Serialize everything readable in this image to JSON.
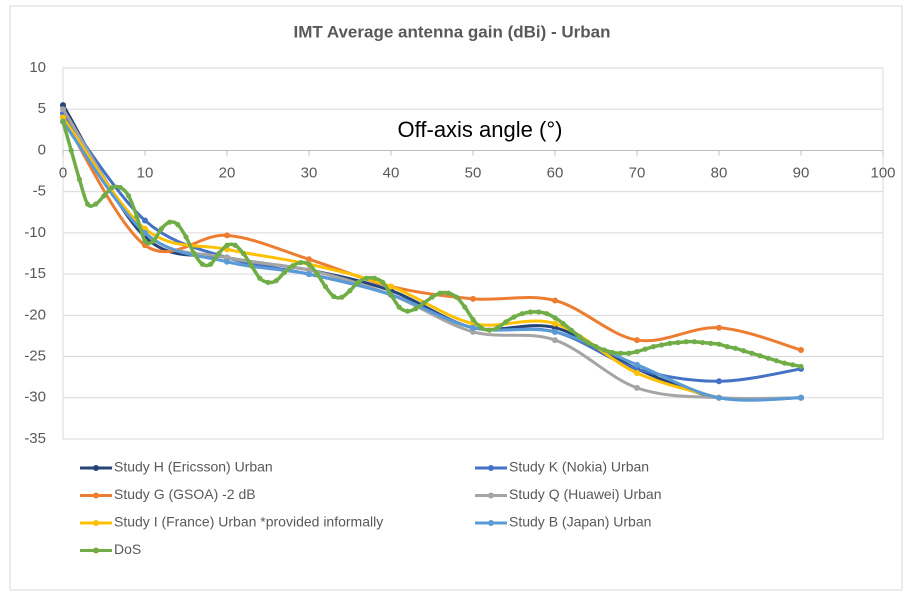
{
  "chart_data": {
    "type": "line",
    "title": "IMT Average antenna gain (dBi) - Urban",
    "x_label": "Off-axis angle (°)",
    "x": [
      0,
      10,
      20,
      30,
      40,
      50,
      60,
      70,
      80,
      90
    ],
    "xlim": [
      0,
      100
    ],
    "xticks": [
      0,
      10,
      20,
      30,
      40,
      50,
      60,
      70,
      80,
      90,
      100
    ],
    "ylim": [
      -35,
      10
    ],
    "yticks": [
      10,
      5,
      0,
      -5,
      -10,
      -15,
      -20,
      -25,
      -30,
      -35
    ],
    "grid": true,
    "legend": "bottom",
    "smooth": true,
    "series": [
      {
        "name": "Study H (Ericsson) Urban",
        "color": "#264478",
        "values": [
          5.5,
          -10.5,
          -13,
          -14.5,
          -17,
          -21.5,
          -21.5,
          -26.5,
          -30,
          -30
        ]
      },
      {
        "name": "Study K (Nokia) Urban",
        "color": "#4472c4",
        "values": [
          4.5,
          -8.5,
          -13,
          -15,
          -17.5,
          -21.5,
          -22,
          -26.5,
          -28,
          -26.5
        ]
      },
      {
        "name": "Study G (GSOA) -2 dB",
        "color": "#ed7d31",
        "values": [
          4,
          -11.5,
          -10.3,
          -13.2,
          -16.5,
          -18,
          -18.2,
          -23,
          -21.5,
          -24.2
        ]
      },
      {
        "name": "Study Q (Huawei) Urban",
        "color": "#a5a5a5",
        "values": [
          5,
          -10,
          -13,
          -14.5,
          -17.5,
          -22,
          -23,
          -28.8,
          -30,
          -30
        ]
      },
      {
        "name": "Study I (France) Urban *provided informally",
        "color": "#ffc000",
        "values": [
          4,
          -9.5,
          -12,
          -13.8,
          -16.5,
          -21,
          -21,
          -27,
          -30,
          null
        ]
      },
      {
        "name": "Study B (Japan) Urban",
        "color": "#5b9bd5",
        "values": [
          3.5,
          -10,
          -13.5,
          -15,
          -17.5,
          -21.5,
          -22,
          -26,
          -30,
          -30
        ]
      },
      {
        "name": "DoS",
        "color": "#70ad47",
        "x": [
          0,
          1,
          2,
          3,
          4,
          5,
          6,
          7,
          8,
          9,
          10,
          11,
          12,
          13,
          14,
          15,
          16,
          17,
          18,
          19,
          20,
          21,
          22,
          23,
          24,
          25,
          26,
          27,
          28,
          29,
          30,
          31,
          32,
          33,
          34,
          35,
          36,
          37,
          38,
          39,
          40,
          41,
          42,
          43,
          44,
          45,
          46,
          47,
          48,
          49,
          50,
          51,
          52,
          53,
          54,
          55,
          56,
          57,
          58,
          59,
          60,
          61,
          62,
          63,
          64,
          65,
          66,
          67,
          68,
          69,
          70,
          71,
          72,
          73,
          74,
          75,
          76,
          77,
          78,
          79,
          80,
          81,
          82,
          83,
          84,
          85,
          86,
          87,
          88,
          89,
          90
        ],
        "values": [
          3.5,
          0,
          -3.5,
          -6.5,
          -6.5,
          -5.5,
          -4.5,
          -4.5,
          -5.5,
          -8,
          -11,
          -11,
          -9.5,
          -8.7,
          -9,
          -10.5,
          -12.5,
          -13.8,
          -13.8,
          -12.5,
          -11.5,
          -11.5,
          -12.5,
          -14,
          -15.5,
          -16,
          -15.8,
          -14.8,
          -14,
          -13.6,
          -13.8,
          -15,
          -16.5,
          -17.7,
          -17.8,
          -17,
          -16,
          -15.5,
          -15.5,
          -16,
          -17.5,
          -19,
          -19.5,
          -19.2,
          -18.5,
          -17.8,
          -17.3,
          -17.3,
          -17.8,
          -19,
          -20.5,
          -21.5,
          -21.8,
          -21.5,
          -20.8,
          -20.2,
          -19.8,
          -19.6,
          -19.6,
          -19.8,
          -20.3,
          -21,
          -21.8,
          -22.6,
          -23.3,
          -23.8,
          -24.2,
          -24.5,
          -24.6,
          -24.6,
          -24.4,
          -24.1,
          -23.8,
          -23.6,
          -23.4,
          -23.3,
          -23.2,
          -23.2,
          -23.3,
          -23.4,
          -23.5,
          -23.8,
          -24,
          -24.3,
          -24.6,
          -24.9,
          -25.2,
          -25.5,
          -25.8,
          -26,
          -26.2
        ]
      }
    ]
  }
}
